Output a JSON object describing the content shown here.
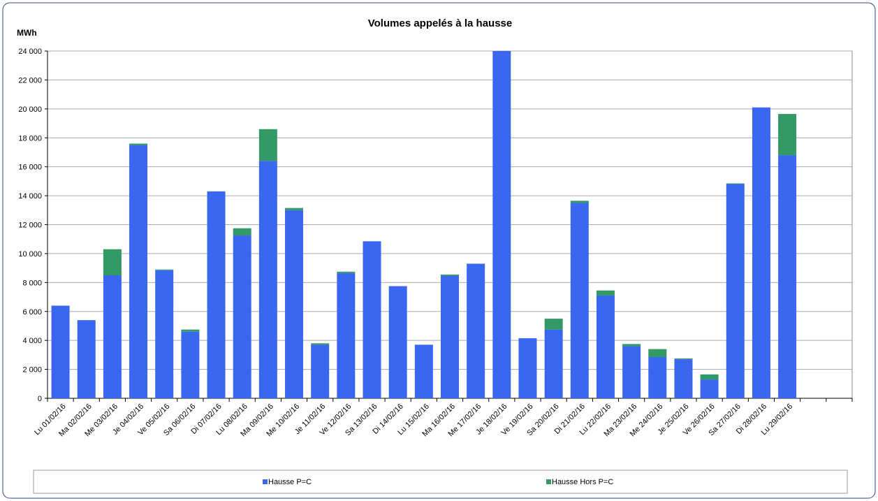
{
  "chart_data": {
    "type": "stacked_bar",
    "title": "Volumes appelés à la hausse",
    "y_label": "MWh",
    "categories": [
      "Lu 01/02/16",
      "Ma 02/02/16",
      "Me 03/02/16",
      "Je 04/02/16",
      "Ve 05/02/16",
      "Sa 06/02/16",
      "Di 07/02/16",
      "Lu 08/02/16",
      "Ma 09/02/16",
      "Me 10/02/16",
      "Je 11/02/16",
      "Ve 12/02/16",
      "Sa 13/02/16",
      "Di 14/02/16",
      "Lu 15/02/16",
      "Ma 16/02/16",
      "Me 17/02/16",
      "Je 18/02/16",
      "Ve 19/02/16",
      "Sa 20/02/16",
      "Di 21/02/16",
      "Lu 22/02/16",
      "Ma 23/02/16",
      "Me 24/02/16",
      "Je 25/02/16",
      "Ve 26/02/16",
      "Sa 27/02/16",
      "Di 28/02/16",
      "Lu 29/02/16",
      null,
      null
    ],
    "series": [
      {
        "name": "Hausse P=C",
        "color": "#3a66f0",
        "values": [
          6400,
          5400,
          8500,
          17500,
          8850,
          4600,
          14300,
          11250,
          16400,
          13000,
          3700,
          8650,
          10850,
          7750,
          3700,
          8450,
          9300,
          24000,
          4150,
          4750,
          13500,
          7100,
          3600,
          2850,
          2700,
          1300,
          14800,
          20100,
          16800,
          null,
          null
        ]
      },
      {
        "name": "Hausse Hors P=C",
        "color": "#339966",
        "values": [
          0,
          0,
          1800,
          100,
          50,
          150,
          0,
          500,
          2200,
          150,
          100,
          100,
          0,
          0,
          0,
          100,
          0,
          0,
          0,
          750,
          150,
          350,
          150,
          550,
          50,
          350,
          50,
          0,
          2850,
          null,
          null
        ]
      }
    ],
    "ylim": [
      0,
      24000
    ],
    "yticks": [
      0,
      {
        "value": 2000,
        "label": "2 000"
      },
      {
        "value": 4000,
        "label": "4 000"
      },
      {
        "value": 6000,
        "label": "6 000"
      },
      {
        "value": 8000,
        "label": "8 000"
      },
      {
        "value": 10000,
        "label": "10 000"
      },
      {
        "value": 12000,
        "label": "12 000"
      },
      {
        "value": 14000,
        "label": "14 000"
      },
      {
        "value": 16000,
        "label": "16 000"
      },
      {
        "value": 18000,
        "label": "18 000"
      },
      {
        "value": 20000,
        "label": "20 000"
      },
      {
        "value": 22000,
        "label": "22 000"
      },
      {
        "value": 24000,
        "label": "24 000"
      }
    ],
    "grid": true,
    "legend": "bottom"
  }
}
